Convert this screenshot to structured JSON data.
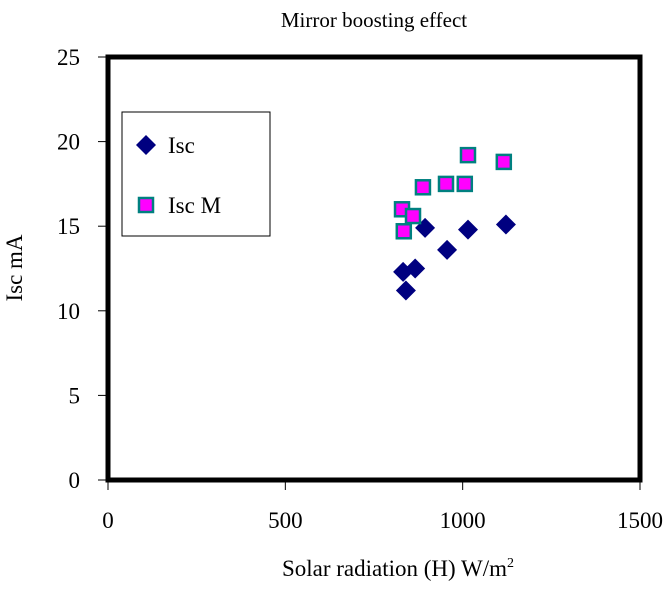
{
  "chart_data": {
    "type": "scatter",
    "title": "Mirror boosting effect",
    "xlabel": "Solar radiation (H) W/m",
    "xlabel_sup": "2",
    "ylabel": "Isc mA",
    "xlim": [
      0,
      1500
    ],
    "ylim": [
      0,
      25
    ],
    "xticks": [
      0,
      500,
      1000,
      1500
    ],
    "yticks": [
      0,
      5,
      10,
      15,
      20,
      25
    ],
    "grid": false,
    "legend": "top-left inside",
    "series": [
      {
        "name": "Isc",
        "marker": "diamond",
        "color": "#000080",
        "x": [
          894,
          1015,
          1122,
          956,
          832,
          866,
          840
        ],
        "y": [
          14.9,
          14.8,
          15.1,
          13.6,
          12.3,
          12.5,
          11.2
        ]
      },
      {
        "name": "Isc M",
        "marker": "square",
        "color": "#FF00FF",
        "edge_color": "#008080",
        "x": [
          1015,
          1116,
          888,
          953,
          1006,
          829,
          860,
          834
        ],
        "y": [
          19.2,
          18.8,
          17.3,
          17.5,
          17.5,
          16.0,
          15.6,
          14.7
        ]
      }
    ]
  }
}
